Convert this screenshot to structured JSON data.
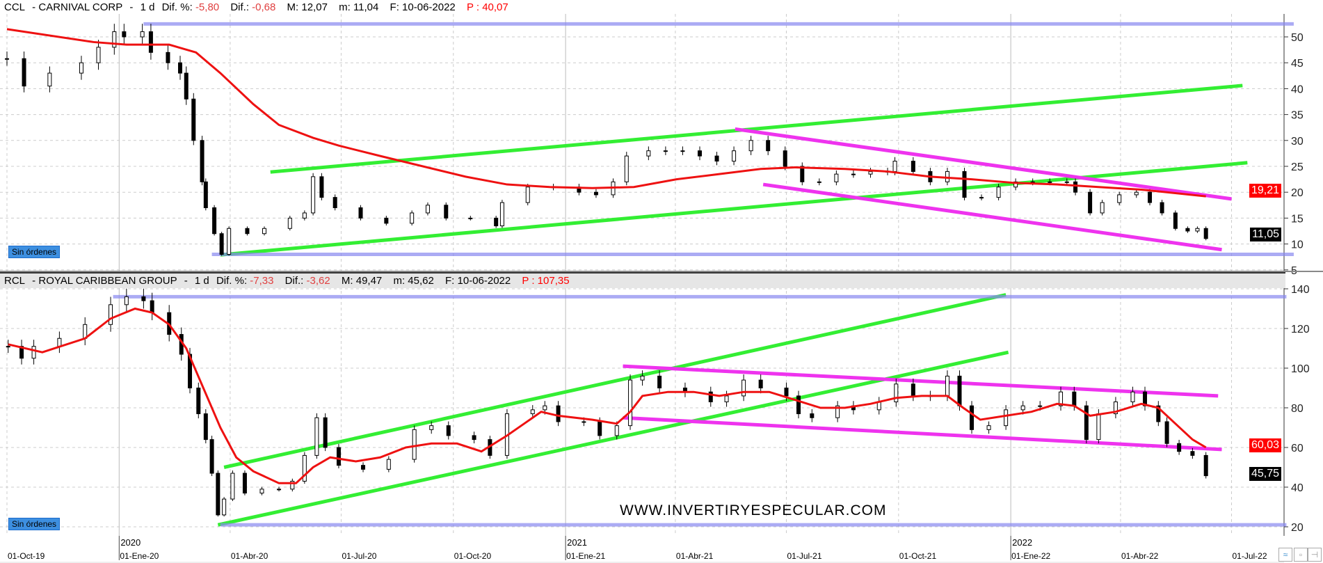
{
  "watermark": "WWW.INVERTIRYESPECULAR.COM",
  "no_orders": "Sin órdenes",
  "colors": {
    "ma": "#ee1111",
    "green": "#33ee33",
    "magenta": "#ee33ee",
    "blue": "#8888f0",
    "cyan": "#33bbee"
  },
  "date_ticks": [
    [
      "2019-10-01",
      "01-Oct-19"
    ],
    [
      "2020-01-01",
      "01-Ene-20"
    ],
    [
      "2020-04-01",
      "01-Abr-20"
    ],
    [
      "2020-07-01",
      "01-Jul-20"
    ],
    [
      "2020-10-01",
      "01-Oct-20"
    ],
    [
      "2021-01-01",
      "01-Ene-21"
    ],
    [
      "2021-04-01",
      "01-Abr-21"
    ],
    [
      "2021-07-01",
      "01-Jul-21"
    ],
    [
      "2021-10-01",
      "01-Oct-21"
    ],
    [
      "2022-01-01",
      "01-Ene-22"
    ],
    [
      "2022-04-01",
      "01-Abr-22"
    ],
    [
      "2022-07-01",
      "01-Jul-22"
    ]
  ],
  "years": [
    [
      "2020-01-01",
      "2020"
    ],
    [
      "2021-01-01",
      "2021"
    ],
    [
      "2022-01-01",
      "2022"
    ]
  ],
  "chart_data": [
    {
      "type": "candlestick",
      "symbol": "CCL",
      "name": "CARNIVAL CORP",
      "period": "1 d",
      "dif_pct": "-5,80",
      "dif": "-0,68",
      "max": "12,07",
      "min": "11,04",
      "date": "10-06-2022",
      "p": "40,07",
      "ma_label": "19,21",
      "last_label": "11,05",
      "y_ticks": [
        5,
        10,
        15,
        20,
        25,
        30,
        35,
        40,
        45,
        50
      ],
      "ylim": [
        5,
        52.5
      ],
      "close": [
        [
          "2019-10-01",
          45.8
        ],
        [
          "2019-10-15",
          40.5
        ],
        [
          "2019-11-05",
          43
        ],
        [
          "2019-12-01",
          45
        ],
        [
          "2019-12-15",
          48
        ],
        [
          "2019-12-28",
          51
        ],
        [
          "2020-01-05",
          50
        ],
        [
          "2020-01-20",
          51
        ],
        [
          "2020-01-27",
          47
        ],
        [
          "2020-02-10",
          45
        ],
        [
          "2020-02-20",
          43
        ],
        [
          "2020-02-25",
          38
        ],
        [
          "2020-03-02",
          30
        ],
        [
          "2020-03-09",
          22
        ],
        [
          "2020-03-12",
          17
        ],
        [
          "2020-03-19",
          12
        ],
        [
          "2020-03-25",
          8
        ],
        [
          "2020-03-31",
          13
        ],
        [
          "2020-04-15",
          12
        ],
        [
          "2020-04-29",
          13
        ],
        [
          "2020-05-20",
          15
        ],
        [
          "2020-06-01",
          16
        ],
        [
          "2020-06-08",
          23
        ],
        [
          "2020-06-15",
          19
        ],
        [
          "2020-06-26",
          17
        ],
        [
          "2020-07-17",
          15
        ],
        [
          "2020-08-07",
          14
        ],
        [
          "2020-08-28",
          16
        ],
        [
          "2020-09-10",
          17.5
        ],
        [
          "2020-09-25",
          15
        ],
        [
          "2020-10-15",
          15
        ],
        [
          "2020-11-05",
          13.5
        ],
        [
          "2020-11-10",
          18
        ],
        [
          "2020-12-01",
          21
        ],
        [
          "2020-12-22",
          21
        ],
        [
          "2021-01-12",
          20
        ],
        [
          "2021-01-26",
          19.5
        ],
        [
          "2021-02-09",
          22
        ],
        [
          "2021-02-20",
          27
        ],
        [
          "2021-03-10",
          28
        ],
        [
          "2021-03-24",
          28
        ],
        [
          "2021-04-07",
          28
        ],
        [
          "2021-04-21",
          27
        ],
        [
          "2021-05-05",
          26
        ],
        [
          "2021-05-19",
          28
        ],
        [
          "2021-06-02",
          30
        ],
        [
          "2021-06-16",
          28
        ],
        [
          "2021-06-30",
          25
        ],
        [
          "2021-07-14",
          22
        ],
        [
          "2021-07-28",
          22
        ],
        [
          "2021-08-11",
          23.5
        ],
        [
          "2021-08-25",
          23.5
        ],
        [
          "2021-09-08",
          24
        ],
        [
          "2021-09-22",
          24
        ],
        [
          "2021-09-28",
          26
        ],
        [
          "2021-10-13",
          24
        ],
        [
          "2021-10-27",
          22
        ],
        [
          "2021-11-10",
          24
        ],
        [
          "2021-11-24",
          19
        ],
        [
          "2021-12-08",
          19
        ],
        [
          "2021-12-22",
          21
        ],
        [
          "2022-01-05",
          22
        ],
        [
          "2022-01-19",
          22
        ],
        [
          "2022-02-02",
          22
        ],
        [
          "2022-02-16",
          22
        ],
        [
          "2022-02-23",
          20
        ],
        [
          "2022-03-07",
          16
        ],
        [
          "2022-03-17",
          18
        ],
        [
          "2022-03-31",
          19.5
        ],
        [
          "2022-04-14",
          20
        ],
        [
          "2022-04-25",
          18
        ],
        [
          "2022-05-05",
          16
        ],
        [
          "2022-05-16",
          13
        ],
        [
          "2022-05-26",
          12.5
        ],
        [
          "2022-06-03",
          13
        ],
        [
          "2022-06-10",
          11.05
        ]
      ],
      "ma": [
        [
          "2019-10-01",
          51.5
        ],
        [
          "2019-12-11",
          49
        ],
        [
          "2020-01-07",
          48.5
        ],
        [
          "2020-02-11",
          48.5
        ],
        [
          "2020-03-04",
          47
        ],
        [
          "2020-03-24",
          43
        ],
        [
          "2020-04-20",
          37
        ],
        [
          "2020-05-11",
          33
        ],
        [
          "2020-06-08",
          30.5
        ],
        [
          "2020-06-29",
          29
        ],
        [
          "2020-08-02",
          27
        ],
        [
          "2020-09-06",
          25
        ],
        [
          "2020-10-11",
          23
        ],
        [
          "2020-11-14",
          21.5
        ],
        [
          "2020-12-19",
          21
        ],
        [
          "2021-01-23",
          20.8
        ],
        [
          "2021-02-26",
          21
        ],
        [
          "2021-04-02",
          22.5
        ],
        [
          "2021-05-07",
          23.5
        ],
        [
          "2021-06-10",
          24.5
        ],
        [
          "2021-07-08",
          24.8
        ],
        [
          "2021-08-18",
          24.5
        ],
        [
          "2021-09-22",
          24
        ],
        [
          "2021-10-27",
          23
        ],
        [
          "2021-11-30",
          22.5
        ],
        [
          "2022-01-04",
          21.8
        ],
        [
          "2022-02-08",
          21.5
        ],
        [
          "2022-03-14",
          21
        ],
        [
          "2022-04-18",
          20.5
        ],
        [
          "2022-06-10",
          19.21
        ]
      ],
      "lines": [
        {
          "color": "green",
          "from": [
            "2020-05-04",
            23.9
          ],
          "to": [
            "2022-07-10",
            40.6
          ]
        },
        {
          "color": "green",
          "from": [
            "2020-03-24",
            7.9
          ],
          "to": [
            "2022-07-14",
            25.7
          ]
        },
        {
          "color": "magenta",
          "from": [
            "2021-05-20",
            32.2
          ],
          "to": [
            "2022-07-01",
            18.7
          ]
        },
        {
          "color": "magenta",
          "from": [
            "2021-06-12",
            21.5
          ],
          "to": [
            "2022-06-23",
            8.9
          ]
        },
        {
          "color": "blue",
          "from": [
            "2020-01-21",
            52.5
          ],
          "to": [
            "2022-08-21",
            52.5
          ]
        },
        {
          "color": "blue",
          "from": [
            "2020-03-17",
            8
          ],
          "to": [
            "2022-08-21",
            8
          ]
        }
      ]
    },
    {
      "type": "candlestick",
      "symbol": "RCL",
      "name": "ROYAL CARIBBEAN GROUP",
      "period": "1 d",
      "dif_pct": "-7,33",
      "dif": "-3,62",
      "max": "49,47",
      "min": "45,62",
      "date": "10-06-2022",
      "p": "107,35",
      "ma_label": "60,03",
      "last_label": "45,75",
      "y_ticks": [
        20,
        40,
        60,
        80,
        100,
        120,
        140
      ],
      "ylim": [
        15,
        140
      ],
      "close": [
        [
          "2019-10-02",
          111
        ],
        [
          "2019-10-13",
          105
        ],
        [
          "2019-10-23",
          111
        ],
        [
          "2019-11-13",
          115
        ],
        [
          "2019-12-04",
          122
        ],
        [
          "2019-12-25",
          132
        ],
        [
          "2020-01-07",
          136
        ],
        [
          "2020-01-21",
          134
        ],
        [
          "2020-01-28",
          128
        ],
        [
          "2020-02-11",
          117
        ],
        [
          "2020-02-21",
          107
        ],
        [
          "2020-02-28",
          90
        ],
        [
          "2020-03-06",
          77
        ],
        [
          "2020-03-12",
          64
        ],
        [
          "2020-03-17",
          47
        ],
        [
          "2020-03-22",
          26
        ],
        [
          "2020-03-27",
          34
        ],
        [
          "2020-04-03",
          47
        ],
        [
          "2020-04-13",
          37
        ],
        [
          "2020-04-27",
          39
        ],
        [
          "2020-05-11",
          39
        ],
        [
          "2020-05-22",
          43
        ],
        [
          "2020-06-01",
          56
        ],
        [
          "2020-06-11",
          75
        ],
        [
          "2020-06-18",
          60
        ],
        [
          "2020-06-29",
          51
        ],
        [
          "2020-07-19",
          49
        ],
        [
          "2020-08-09",
          54
        ],
        [
          "2020-08-30",
          69
        ],
        [
          "2020-09-13",
          71
        ],
        [
          "2020-09-27",
          66
        ],
        [
          "2020-10-18",
          64
        ],
        [
          "2020-10-31",
          56
        ],
        [
          "2020-11-14",
          77
        ],
        [
          "2020-12-05",
          79
        ],
        [
          "2020-12-15",
          81
        ],
        [
          "2020-12-26",
          73
        ],
        [
          "2021-01-16",
          73
        ],
        [
          "2021-01-29",
          66
        ],
        [
          "2021-02-12",
          71
        ],
        [
          "2021-02-23",
          94
        ],
        [
          "2021-03-05",
          96
        ],
        [
          "2021-03-19",
          90
        ],
        [
          "2021-04-09",
          88
        ],
        [
          "2021-04-30",
          83
        ],
        [
          "2021-05-13",
          86
        ],
        [
          "2021-05-27",
          94
        ],
        [
          "2021-06-10",
          90
        ],
        [
          "2021-07-01",
          86
        ],
        [
          "2021-07-11",
          77
        ],
        [
          "2021-07-22",
          75
        ],
        [
          "2021-08-12",
          81
        ],
        [
          "2021-08-25",
          79
        ],
        [
          "2021-09-15",
          83
        ],
        [
          "2021-09-29",
          92
        ],
        [
          "2021-10-13",
          86
        ],
        [
          "2021-10-27",
          86
        ],
        [
          "2021-11-10",
          96
        ],
        [
          "2021-11-20",
          81
        ],
        [
          "2021-11-30",
          69
        ],
        [
          "2021-12-14",
          71
        ],
        [
          "2021-12-28",
          79
        ],
        [
          "2022-01-11",
          81
        ],
        [
          "2022-01-25",
          81
        ],
        [
          "2022-02-11",
          88
        ],
        [
          "2022-02-22",
          81
        ],
        [
          "2022-03-04",
          64
        ],
        [
          "2022-03-14",
          77
        ],
        [
          "2022-03-28",
          83
        ],
        [
          "2022-04-11",
          88
        ],
        [
          "2022-04-21",
          81
        ],
        [
          "2022-05-02",
          73
        ],
        [
          "2022-05-09",
          62
        ],
        [
          "2022-05-19",
          58
        ],
        [
          "2022-05-30",
          56
        ],
        [
          "2022-06-10",
          45.75
        ]
      ],
      "ma": [
        [
          "2019-10-02",
          112
        ],
        [
          "2019-10-30",
          108
        ],
        [
          "2019-12-04",
          115
        ],
        [
          "2019-12-25",
          125
        ],
        [
          "2020-01-14",
          130
        ],
        [
          "2020-01-28",
          128
        ],
        [
          "2020-02-11",
          122
        ],
        [
          "2020-02-25",
          110
        ],
        [
          "2020-03-10",
          90
        ],
        [
          "2020-03-24",
          70
        ],
        [
          "2020-04-06",
          55
        ],
        [
          "2020-04-20",
          48
        ],
        [
          "2020-05-11",
          42
        ],
        [
          "2020-05-25",
          42
        ],
        [
          "2020-06-08",
          50
        ],
        [
          "2020-06-22",
          55
        ],
        [
          "2020-07-13",
          53
        ],
        [
          "2020-08-02",
          55
        ],
        [
          "2020-08-23",
          60
        ],
        [
          "2020-09-13",
          62
        ],
        [
          "2020-10-04",
          62
        ],
        [
          "2020-10-24",
          58
        ],
        [
          "2020-11-14",
          66
        ],
        [
          "2020-11-28",
          72
        ],
        [
          "2020-12-12",
          78
        ],
        [
          "2020-12-26",
          76
        ],
        [
          "2021-01-23",
          74
        ],
        [
          "2021-02-12",
          72
        ],
        [
          "2021-02-23",
          78
        ],
        [
          "2021-03-05",
          86
        ],
        [
          "2021-03-26",
          88
        ],
        [
          "2021-04-16",
          88
        ],
        [
          "2021-05-07",
          86
        ],
        [
          "2021-05-27",
          88
        ],
        [
          "2021-06-17",
          88
        ],
        [
          "2021-07-08",
          84
        ],
        [
          "2021-07-29",
          80
        ],
        [
          "2021-08-18",
          80
        ],
        [
          "2021-09-08",
          82
        ],
        [
          "2021-09-29",
          85
        ],
        [
          "2021-10-20",
          86
        ],
        [
          "2021-11-10",
          86
        ],
        [
          "2021-11-23",
          80
        ],
        [
          "2021-12-07",
          74
        ],
        [
          "2021-12-28",
          76
        ],
        [
          "2022-01-18",
          78
        ],
        [
          "2022-02-08",
          82
        ],
        [
          "2022-02-22",
          81
        ],
        [
          "2022-03-07",
          76
        ],
        [
          "2022-03-28",
          78
        ],
        [
          "2022-04-18",
          82
        ],
        [
          "2022-05-02",
          80
        ],
        [
          "2022-05-16",
          72
        ],
        [
          "2022-05-30",
          64
        ],
        [
          "2022-06-10",
          60.03
        ]
      ],
      "lines": [
        {
          "color": "green",
          "from": [
            "2020-03-27",
            50
          ],
          "to": [
            "2021-12-28",
            137
          ]
        },
        {
          "color": "green",
          "from": [
            "2020-03-22",
            21
          ],
          "to": [
            "2021-12-30",
            108
          ]
        },
        {
          "color": "magenta",
          "from": [
            "2021-02-17",
            101
          ],
          "to": [
            "2022-06-20",
            86
          ]
        },
        {
          "color": "magenta",
          "from": [
            "2021-02-17",
            75
          ],
          "to": [
            "2022-06-23",
            59
          ]
        },
        {
          "color": "blue",
          "from": [
            "2019-12-27",
            136
          ],
          "to": [
            "2022-08-15",
            136
          ]
        },
        {
          "color": "blue",
          "from": [
            "2020-03-24",
            21
          ],
          "to": [
            "2022-08-15",
            21
          ]
        }
      ]
    }
  ]
}
